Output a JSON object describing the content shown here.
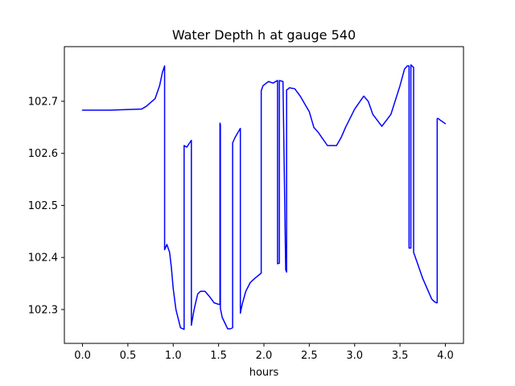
{
  "chart_data": {
    "type": "line",
    "title": "Water Depth h at gauge 540",
    "xlabel": "hours",
    "ylabel": "",
    "xlim": [
      -0.2,
      4.2
    ],
    "ylim": [
      102.235,
      102.805
    ],
    "x_ticks": [
      0.0,
      0.5,
      1.0,
      1.5,
      2.0,
      2.5,
      3.0,
      3.5,
      4.0
    ],
    "x_tick_labels": [
      "0.0",
      "0.5",
      "1.0",
      "1.5",
      "2.0",
      "2.5",
      "3.0",
      "3.5",
      "4.0"
    ],
    "y_ticks": [
      102.3,
      102.4,
      102.5,
      102.6,
      102.7
    ],
    "y_tick_labels": [
      "102.3",
      "102.4",
      "102.5",
      "102.6",
      "102.7"
    ],
    "grid": false,
    "legend": "none",
    "series": [
      {
        "color": "#0000ff",
        "x": [
          0.0,
          0.3,
          0.65,
          0.7,
          0.8,
          0.85,
          0.88,
          0.905,
          0.905,
          0.93,
          0.96,
          0.98,
          1.0,
          1.03,
          1.08,
          1.12,
          1.12,
          1.15,
          1.18,
          1.2,
          1.2,
          1.23,
          1.27,
          1.3,
          1.35,
          1.4,
          1.45,
          1.5,
          1.515,
          1.515,
          1.52,
          1.52,
          1.54,
          1.6,
          1.63,
          1.655,
          1.655,
          1.68,
          1.74,
          1.74,
          1.76,
          1.8,
          1.85,
          1.9,
          1.97,
          1.97,
          1.99,
          2.05,
          2.1,
          2.15,
          2.15,
          2.17,
          2.17,
          2.21,
          2.24,
          2.25,
          2.25,
          2.27,
          2.28,
          2.34,
          2.4,
          2.5,
          2.55,
          2.6,
          2.7,
          2.8,
          2.85,
          2.9,
          3.0,
          3.1,
          3.15,
          3.2,
          3.3,
          3.4,
          3.5,
          3.55,
          3.58,
          3.6,
          3.6,
          3.62,
          3.62,
          3.65,
          3.65,
          3.7,
          3.75,
          3.8,
          3.85,
          3.88,
          3.9,
          3.91,
          3.91,
          3.92,
          3.95,
          4.0
        ],
        "y": [
          102.683,
          102.683,
          102.685,
          102.69,
          102.705,
          102.73,
          102.755,
          102.768,
          102.415,
          102.425,
          102.41,
          102.38,
          102.34,
          102.3,
          102.265,
          102.262,
          102.615,
          102.612,
          102.62,
          102.625,
          102.27,
          102.3,
          102.33,
          102.335,
          102.335,
          102.325,
          102.313,
          102.31,
          102.31,
          102.658,
          102.655,
          102.302,
          102.285,
          102.263,
          102.263,
          102.265,
          102.62,
          102.63,
          102.648,
          102.293,
          102.31,
          102.335,
          102.352,
          102.36,
          102.37,
          102.72,
          102.73,
          102.738,
          102.735,
          102.74,
          102.388,
          102.389,
          102.74,
          102.738,
          102.376,
          102.372,
          102.722,
          102.724,
          102.726,
          102.724,
          102.71,
          102.68,
          102.65,
          102.64,
          102.615,
          102.615,
          102.63,
          102.65,
          102.685,
          102.71,
          102.7,
          102.675,
          102.652,
          102.675,
          102.73,
          102.762,
          102.768,
          102.768,
          102.418,
          102.418,
          102.77,
          102.765,
          102.41,
          102.385,
          102.36,
          102.34,
          102.32,
          102.315,
          102.313,
          102.313,
          102.667,
          102.667,
          102.663,
          102.657
        ]
      }
    ]
  }
}
